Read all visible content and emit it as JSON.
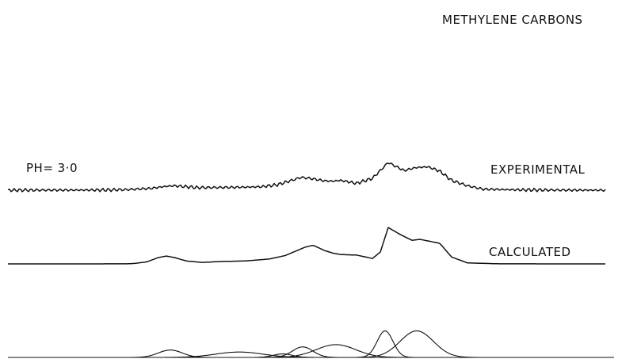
{
  "chart_data": {
    "type": "line",
    "title": "METHYLENE CARBONS",
    "annotation": "PH= 3·0",
    "xlabel": "",
    "ylabel": "",
    "grid": false,
    "series": [
      {
        "name": "EXPERIMENTAL",
        "x": [
          0,
          40,
          80,
          120,
          150,
          180,
          200,
          210,
          240,
          270,
          300,
          320,
          340,
          360,
          370,
          380,
          400,
          410,
          420,
          440,
          460,
          470,
          480,
          490,
          500,
          515,
          530,
          545,
          560,
          580,
          600,
          650,
          700,
          755
        ],
        "y": [
          0.0,
          0.01,
          0.01,
          0.02,
          0.06,
          0.18,
          0.4,
          0.45,
          0.26,
          0.28,
          0.31,
          0.35,
          0.55,
          1.05,
          1.3,
          1.22,
          0.95,
          0.92,
          1.0,
          0.7,
          1.2,
          2.0,
          2.82,
          2.4,
          2.0,
          2.3,
          2.38,
          1.95,
          1.0,
          0.45,
          0.1,
          0.03,
          0.01,
          0.0
        ]
      },
      {
        "name": "CALCULATED",
        "x": [
          0,
          50,
          100,
          150,
          160,
          175,
          190,
          200,
          210,
          225,
          245,
          270,
          300,
          330,
          350,
          375,
          385,
          400,
          410,
          420,
          440,
          460,
          470,
          480,
          495,
          510,
          520,
          545,
          560,
          580,
          620,
          700,
          755
        ],
        "y": [
          0.0,
          0.0,
          0.0,
          0.01,
          0.05,
          0.2,
          0.65,
          0.8,
          0.65,
          0.3,
          0.15,
          0.25,
          0.3,
          0.5,
          0.85,
          1.7,
          1.9,
          1.35,
          1.1,
          0.95,
          0.9,
          0.55,
          1.2,
          3.7,
          3.0,
          2.4,
          2.5,
          2.1,
          0.7,
          0.1,
          0.01,
          0.0,
          0.0
        ]
      }
    ],
    "components": [
      {
        "center": 205,
        "height": 0.75,
        "width": 15
      },
      {
        "center": 292,
        "height": 0.55,
        "width": 30
      },
      {
        "center": 347,
        "height": 0.36,
        "width": 12
      },
      {
        "center": 372,
        "height": 1.07,
        "width": 13
      },
      {
        "center": 414,
        "height": 1.3,
        "width": 25
      },
      {
        "center": 476,
        "height": 2.7,
        "width": 10
      },
      {
        "center": 516,
        "height": 2.7,
        "width": 21
      }
    ],
    "curve_labels": [
      "EXPERIMENTAL",
      "CALCULATED"
    ]
  }
}
